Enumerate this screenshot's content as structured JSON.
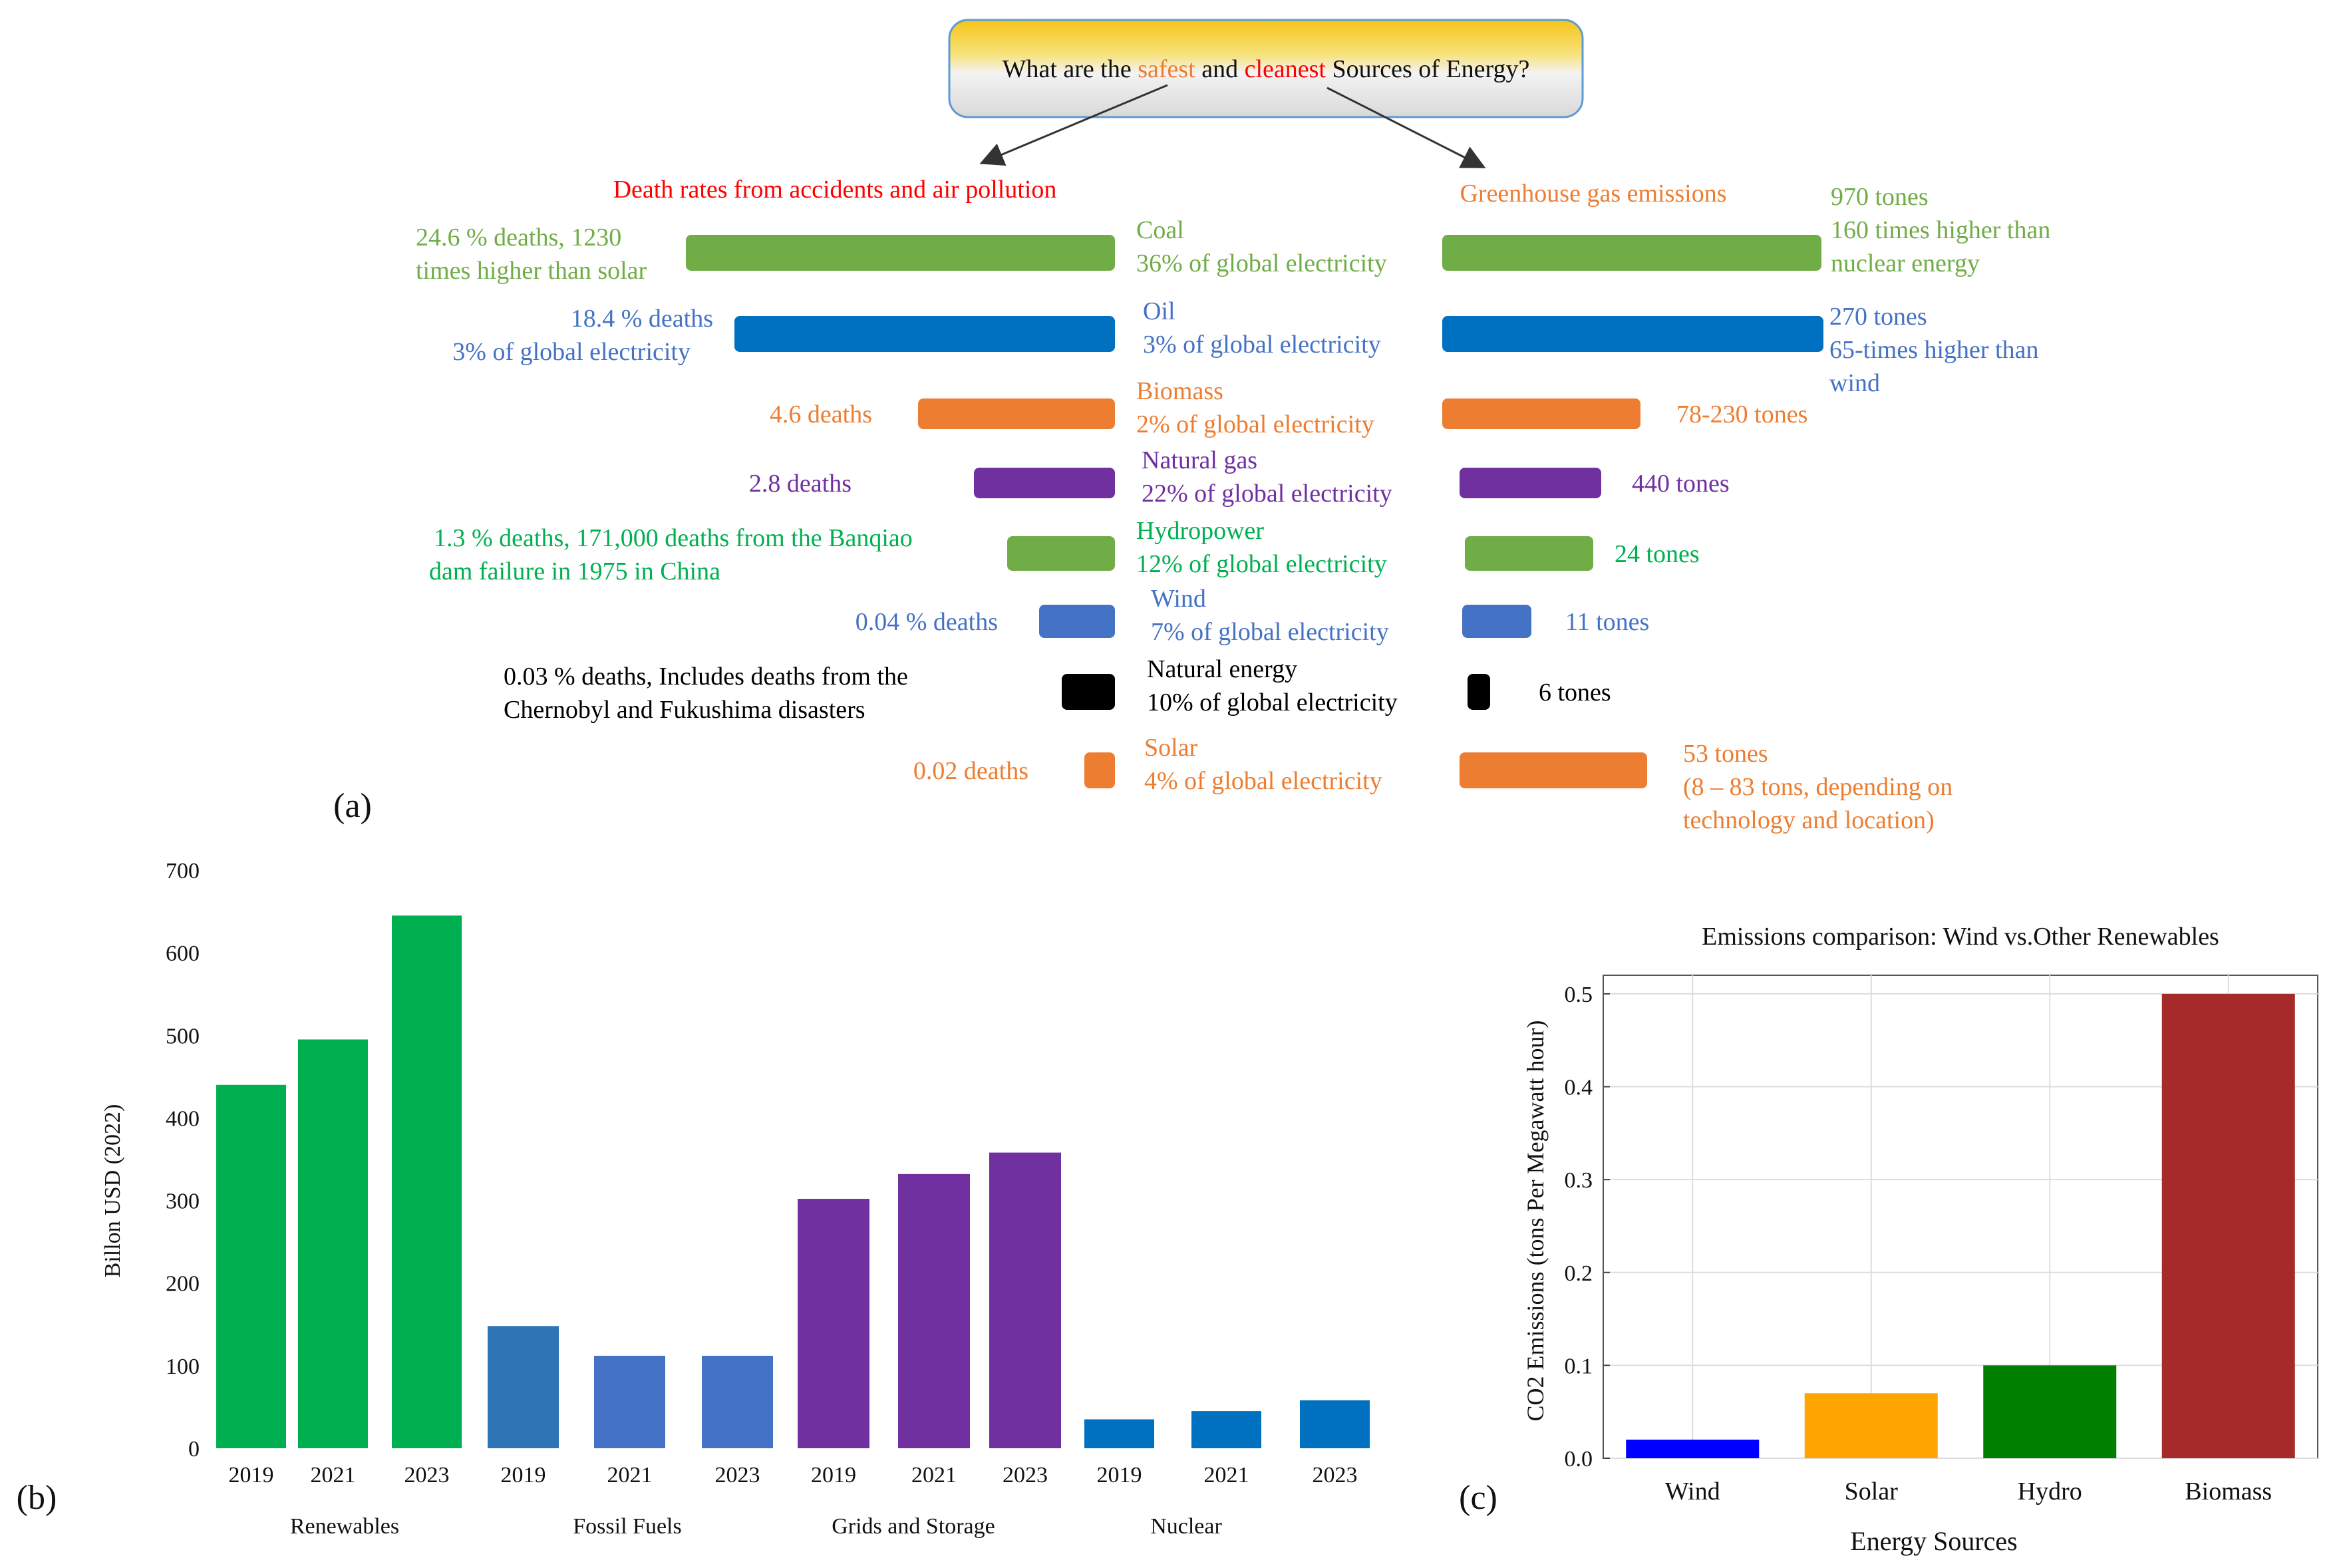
{
  "colors": {
    "coal": "#70ad47",
    "oil": "#0070c0",
    "biomass": "#ed7d31",
    "gas": "#7030a0",
    "hydro": "#70ad47",
    "wind": "#4472c4",
    "nuclear": "#000000",
    "solar": "#ed7d31",
    "title_red": "#ff0000",
    "title_orange": "#ed7d31",
    "ren": "#00b050",
    "fossil_2019": "#2e75b6",
    "fossil": "#4472c4",
    "grids": "#7030a0",
    "nuclear_bar": "#0070c0",
    "c_wind": "#0000ff",
    "c_solar": "#ffa500",
    "c_hydro": "#008000",
    "c_biomass": "#a52a2a"
  },
  "panel_a": {
    "question": {
      "prefix": "What are the ",
      "safest": "safest",
      "and": " and ",
      "cleanest": "cleanest",
      "suffix": " Sources of Energy?"
    },
    "left_title": "Death rates from accidents and air pollution",
    "right_title": "Greenhouse gas emissions",
    "label": "(a)"
  },
  "chart_data": [
    {
      "id": "a_deaths",
      "type": "bar",
      "orientation": "horizontal",
      "title": "Death rates from accidents and air pollution",
      "categories": [
        "Coal",
        "Oil",
        "Biomass",
        "Natural gas",
        "Hydropower",
        "Wind",
        "Natural energy",
        "Solar"
      ],
      "values": [
        24.6,
        18.4,
        4.6,
        2.8,
        1.3,
        0.04,
        0.03,
        0.02
      ],
      "annotations": [
        [
          "24.6 % deaths, 1230",
          "times higher than solar"
        ],
        [
          "18.4 % deaths",
          "3% of global electricity"
        ],
        [
          "4.6 deaths"
        ],
        [
          "2.8 deaths"
        ],
        [
          "1.3 % deaths,   171,000 deaths from the Banqiao",
          "dam failure in 1975 in China"
        ],
        [
          "0.04 % deaths"
        ],
        [
          "0.03 % deaths, Includes deaths from the",
          "Chernobyl and Fukushima disasters"
        ],
        [
          "0.02 deaths"
        ]
      ],
      "sources": [
        [
          "Coal",
          "36% of global electricity"
        ],
        [
          "Oil",
          "3% of global electricity"
        ],
        [
          "Biomass",
          "2% of global electricity"
        ],
        [
          "Natural gas",
          "22% of global electricity"
        ],
        [
          "Hydropower",
          "12% of global electricity"
        ],
        [
          "Wind",
          "7% of global electricity"
        ],
        [
          "Natural energy",
          "10% of global electricity"
        ],
        [
          "Solar",
          "4% of global electricity"
        ]
      ]
    },
    {
      "id": "a_emissions",
      "type": "bar",
      "orientation": "horizontal",
      "title": "Greenhouse gas emissions",
      "categories": [
        "Coal",
        "Oil",
        "Biomass",
        "Natural gas",
        "Hydropower",
        "Wind",
        "Natural energy",
        "Solar"
      ],
      "values": [
        970,
        270,
        78,
        440,
        24,
        11,
        6,
        53
      ],
      "annotations": [
        [
          "970 tones",
          "160 times higher than",
          "nuclear energy"
        ],
        [
          "270 tones",
          "65-times higher than",
          "wind"
        ],
        [
          "78-230 tones"
        ],
        [
          "440 tones"
        ],
        [
          "24 tones"
        ],
        [
          "11 tones"
        ],
        [
          "6 tones"
        ],
        [
          "53 tones",
          "(8 – 83 tons, depending on",
          "technology and location)"
        ]
      ]
    },
    {
      "id": "b",
      "type": "bar",
      "label": "(b)",
      "ylabel": "Billon USD (2022)",
      "ylim": [
        0,
        700
      ],
      "yticks": [
        "0",
        "100",
        "200",
        "300",
        "400",
        "500",
        "600",
        "700"
      ],
      "groups": [
        {
          "name": "Renewables",
          "years": [
            "2019",
            "2021",
            "2023"
          ],
          "values": [
            440,
            495,
            645
          ]
        },
        {
          "name": "Fossil Fuels",
          "years": [
            "2019",
            "2021",
            "2023"
          ],
          "values": [
            148,
            112,
            112
          ]
        },
        {
          "name": "Grids and Storage",
          "years": [
            "2019",
            "2021",
            "2023"
          ],
          "values": [
            302,
            332,
            358
          ]
        },
        {
          "name": "Nuclear",
          "years": [
            "2019",
            "2021",
            "2023"
          ],
          "values": [
            35,
            45,
            58
          ]
        }
      ]
    },
    {
      "id": "c",
      "type": "bar",
      "label": "(c)",
      "title": "Emissions comparison: Wind vs.Other Renewables",
      "xlabel": "Energy Sources",
      "ylabel": "CO2  Emissions (tons Per Megawatt hour)",
      "categories": [
        "Wind",
        "Solar",
        "Hydro",
        "Biomass"
      ],
      "values": [
        0.02,
        0.07,
        0.1,
        0.5
      ],
      "ylim": [
        0.0,
        0.52
      ],
      "yticks": [
        "0.0",
        "0.1",
        "0.2",
        "0.3",
        "0.4",
        "0.5"
      ],
      "grid": true
    }
  ]
}
